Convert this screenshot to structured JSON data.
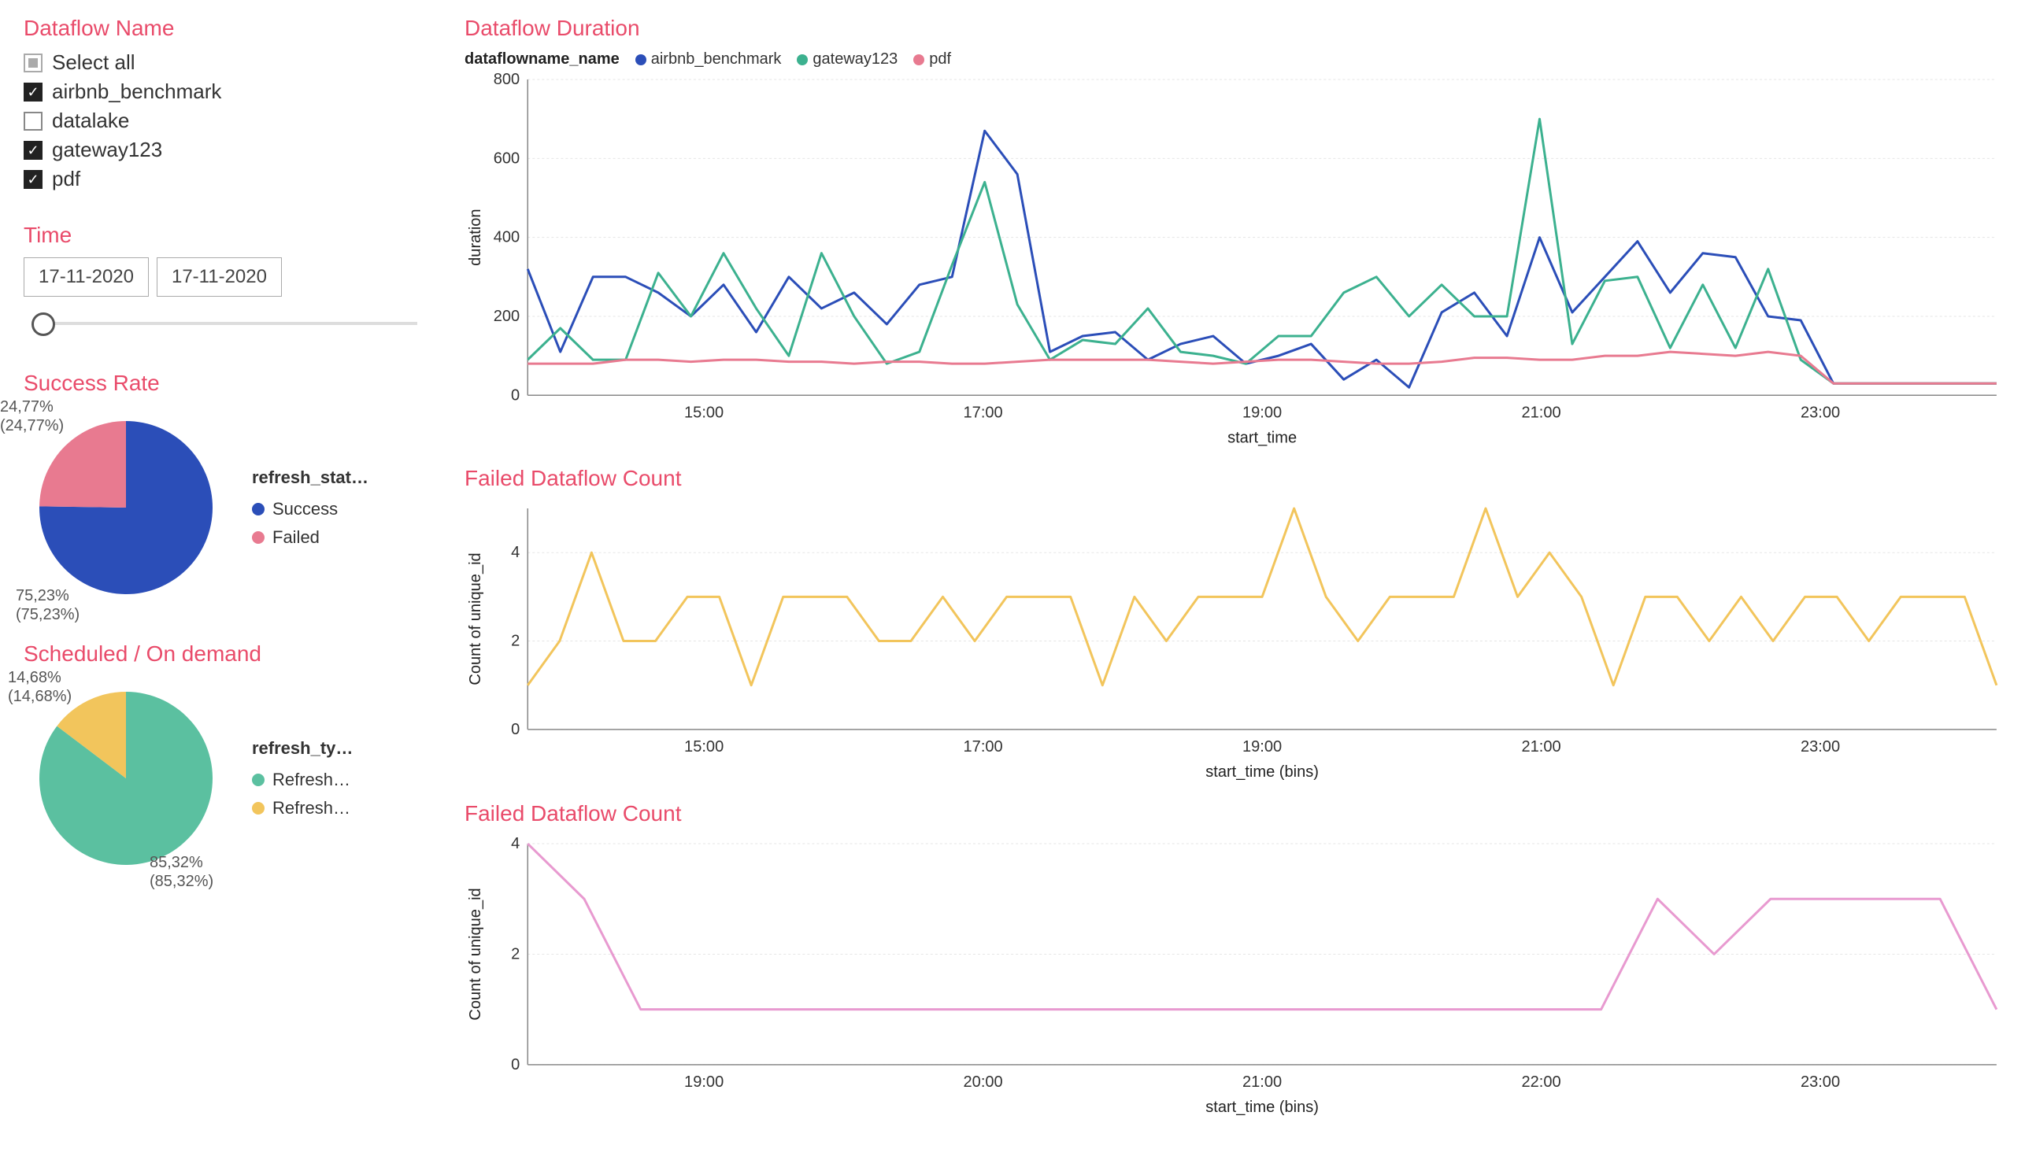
{
  "slicer": {
    "title": "Dataflow Name",
    "select_all_label": "Select all",
    "select_all_state": "indeterminate",
    "items": [
      {
        "label": "airbnb_benchmark",
        "checked": true
      },
      {
        "label": "datalake",
        "checked": false
      },
      {
        "label": "gateway123",
        "checked": true
      },
      {
        "label": "pdf",
        "checked": true
      }
    ]
  },
  "time": {
    "title": "Time",
    "from": "17-11-2020",
    "to": "17-11-2020"
  },
  "success_rate": {
    "title": "Success Rate",
    "legend_title": "refresh_stat…",
    "slices": [
      {
        "label": "Success",
        "pct": 75.23,
        "display_pct": "75,23%",
        "display_paren": "(75,23%)",
        "color": "#2b4eb8"
      },
      {
        "label": "Failed",
        "pct": 24.77,
        "display_pct": "24,77%",
        "display_paren": "(24,77%)",
        "color": "#e87a90"
      }
    ]
  },
  "scheduled": {
    "title": "Scheduled / On demand",
    "legend_title": "refresh_ty…",
    "slices": [
      {
        "label": "Refresh…",
        "pct": 85.32,
        "display_pct": "85,32%",
        "display_paren": "(85,32%)",
        "color": "#5bc0a0"
      },
      {
        "label": "Refresh…",
        "pct": 14.68,
        "display_pct": "14,68%",
        "display_paren": "(14,68%)",
        "color": "#f2c55c"
      }
    ]
  },
  "duration_chart": {
    "title": "Dataflow Duration",
    "legend_label": "dataflowname_name",
    "y_axis_title": "duration",
    "x_axis_title": "start_time",
    "ylim": [
      0,
      800
    ],
    "ytick_step": 200,
    "x_ticks": [
      "15:00",
      "17:00",
      "19:00",
      "21:00",
      "23:00"
    ],
    "grid_color": "#e5e5e5",
    "background_color": "#ffffff",
    "line_width": 3,
    "series": [
      {
        "name": "airbnb_benchmark",
        "color": "#2b4eb8",
        "values": [
          320,
          110,
          300,
          300,
          260,
          200,
          280,
          160,
          300,
          220,
          260,
          180,
          280,
          300,
          670,
          560,
          110,
          150,
          160,
          90,
          130,
          150,
          80,
          100,
          130,
          40,
          90,
          20,
          210,
          260,
          150,
          400,
          210,
          300,
          390,
          260,
          360,
          350,
          200,
          190,
          30,
          30,
          30,
          30,
          30,
          30
        ]
      },
      {
        "name": "gateway123",
        "color": "#3cb18f",
        "values": [
          90,
          170,
          90,
          90,
          310,
          200,
          360,
          220,
          100,
          360,
          200,
          80,
          110,
          330,
          540,
          230,
          90,
          140,
          130,
          220,
          110,
          100,
          80,
          150,
          150,
          260,
          300,
          200,
          280,
          200,
          200,
          700,
          130,
          290,
          300,
          120,
          280,
          120,
          320,
          90,
          30,
          30,
          30,
          30,
          30,
          30
        ]
      },
      {
        "name": "pdf",
        "color": "#e87a90",
        "values": [
          80,
          80,
          80,
          90,
          90,
          85,
          90,
          90,
          85,
          85,
          80,
          85,
          85,
          80,
          80,
          85,
          90,
          90,
          90,
          90,
          85,
          80,
          85,
          90,
          90,
          85,
          80,
          80,
          85,
          95,
          95,
          90,
          90,
          100,
          100,
          110,
          105,
          100,
          110,
          100,
          30,
          30,
          30,
          30,
          30,
          30
        ]
      }
    ]
  },
  "failed_count1": {
    "title": "Failed Dataflow Count",
    "y_axis_title": "Count of unique_id",
    "x_axis_title": "start_time (bins)",
    "ylim": [
      0,
      5
    ],
    "yticks": [
      0,
      2,
      4
    ],
    "x_ticks": [
      "15:00",
      "17:00",
      "19:00",
      "21:00",
      "23:00"
    ],
    "color": "#f2c55c",
    "line_width": 3,
    "values": [
      1,
      2,
      4,
      2,
      2,
      3,
      3,
      1,
      3,
      3,
      3,
      2,
      2,
      3,
      2,
      3,
      3,
      3,
      1,
      3,
      2,
      3,
      3,
      3,
      5,
      3,
      2,
      3,
      3,
      3,
      5,
      3,
      4,
      3,
      1,
      3,
      3,
      2,
      3,
      2,
      3,
      3,
      2,
      3,
      3,
      3,
      1
    ]
  },
  "failed_count2": {
    "title": "Failed Dataflow Count",
    "y_axis_title": "Count of unique_id",
    "x_axis_title": "start_time (bins)",
    "ylim": [
      0,
      4
    ],
    "yticks": [
      0,
      2,
      4
    ],
    "x_ticks": [
      "19:00",
      "20:00",
      "21:00",
      "22:00",
      "23:00"
    ],
    "color": "#e89ad0",
    "line_width": 3,
    "values": [
      4,
      3,
      1,
      1,
      1,
      1,
      1,
      1,
      1,
      1,
      1,
      1,
      1,
      1,
      1,
      1,
      1,
      1,
      1,
      1,
      3,
      2,
      3,
      3,
      3,
      3,
      1
    ]
  }
}
